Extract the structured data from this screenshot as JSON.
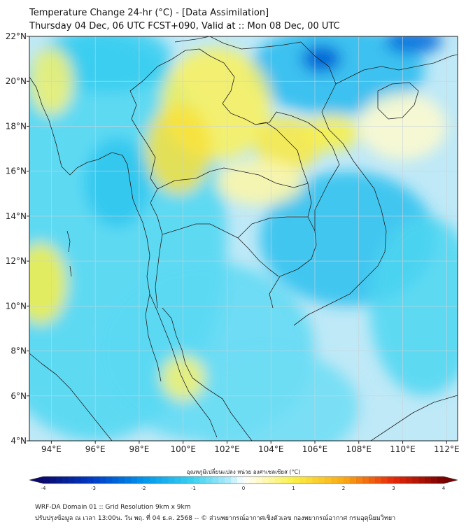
{
  "title": {
    "line1": "Temperature Change 24-hr (°C) - [Data Assimilation]",
    "line2": "Thursday 04 Dec, 06 UTC FCST+090, Valid at :: Mon 08 Dec, 00 UTC"
  },
  "map": {
    "lon_range": [
      93,
      112.5
    ],
    "lat_range": [
      4,
      22
    ],
    "lon_ticks": [
      {
        "value": 94,
        "label": "94°E"
      },
      {
        "value": 96,
        "label": "96°E"
      },
      {
        "value": 98,
        "label": "98°E"
      },
      {
        "value": 100,
        "label": "100°E"
      },
      {
        "value": 102,
        "label": "102°E"
      },
      {
        "value": 104,
        "label": "104°E"
      },
      {
        "value": 106,
        "label": "106°E"
      },
      {
        "value": 108,
        "label": "108°E"
      },
      {
        "value": 110,
        "label": "110°E"
      },
      {
        "value": 112,
        "label": "112°E"
      }
    ],
    "lat_ticks": [
      {
        "value": 4,
        "label": "4°N"
      },
      {
        "value": 6,
        "label": "6°N"
      },
      {
        "value": 8,
        "label": "8°N"
      },
      {
        "value": 10,
        "label": "10°N"
      },
      {
        "value": 12,
        "label": "12°N"
      },
      {
        "value": 14,
        "label": "14°N"
      },
      {
        "value": 16,
        "label": "16°N"
      },
      {
        "value": 18,
        "label": "18°N"
      },
      {
        "value": 20,
        "label": "20°N"
      },
      {
        "value": 22,
        "label": "22°N"
      }
    ],
    "anomaly_blobs": [
      {
        "lon": 96,
        "lat": 13,
        "rx": 6,
        "ry": 9,
        "v": -0.9
      },
      {
        "lon": 101,
        "lat": 8,
        "rx": 5,
        "ry": 4,
        "v": -0.8
      },
      {
        "lon": 107.5,
        "lat": 13,
        "rx": 4,
        "ry": 3,
        "v": -1.3
      },
      {
        "lon": 111,
        "lat": 10,
        "rx": 2.5,
        "ry": 4,
        "v": -0.9
      },
      {
        "lon": 104,
        "lat": 5.5,
        "rx": 4,
        "ry": 2.5,
        "v": -0.7
      },
      {
        "lon": 107,
        "lat": 20.5,
        "rx": 4,
        "ry": 2,
        "v": -1.4
      },
      {
        "lon": 106.3,
        "lat": 21,
        "rx": 0.9,
        "ry": 0.6,
        "v": -2.7
      },
      {
        "lon": 110.5,
        "lat": 21.8,
        "rx": 1.3,
        "ry": 0.6,
        "v": -2.5
      },
      {
        "lon": 96.5,
        "lat": 21,
        "rx": 3,
        "ry": 1.5,
        "v": -1.1
      },
      {
        "lon": 101.5,
        "lat": 19,
        "rx": 2.5,
        "ry": 2.5,
        "v": 0.9
      },
      {
        "lon": 99.8,
        "lat": 17,
        "rx": 1.5,
        "ry": 2,
        "v": 1.2
      },
      {
        "lon": 104.8,
        "lat": 17.2,
        "rx": 1.5,
        "ry": 1.2,
        "v": 1.1
      },
      {
        "lon": 106.8,
        "lat": 17.7,
        "rx": 1.2,
        "ry": 0.8,
        "v": 1.0
      },
      {
        "lon": 103.5,
        "lat": 15.5,
        "rx": 2,
        "ry": 1,
        "v": 0.5
      },
      {
        "lon": 93.5,
        "lat": 11,
        "rx": 1.2,
        "ry": 1.8,
        "v": 1.0
      },
      {
        "lon": 94,
        "lat": 20,
        "rx": 1,
        "ry": 1.5,
        "v": 0.8
      },
      {
        "lon": 100,
        "lat": 6.8,
        "rx": 1,
        "ry": 1,
        "v": 0.8
      },
      {
        "lon": 110,
        "lat": 18,
        "rx": 2,
        "ry": 1.5,
        "v": 0.3
      },
      {
        "lon": 97,
        "lat": 15.5,
        "rx": 1.5,
        "ry": 2,
        "v": -1.2
      }
    ]
  },
  "colorbar": {
    "title": "อุณหภูมิเปลี่ยนแปลง หน่วย องศาเซลเซียส (°C)",
    "min": -4,
    "max": 4,
    "ticks": [
      {
        "value": -4,
        "label": "-4"
      },
      {
        "value": -3,
        "label": "-3"
      },
      {
        "value": -2,
        "label": "-2"
      },
      {
        "value": -1,
        "label": "-1"
      },
      {
        "value": 0,
        "label": "0"
      },
      {
        "value": 1,
        "label": "1"
      },
      {
        "value": 2,
        "label": "2"
      },
      {
        "value": 3,
        "label": "3"
      },
      {
        "value": 4,
        "label": "4"
      }
    ]
  },
  "footer": {
    "line1": "WRF-DA Domain 01 :: Grid Resolution 9km x 9km",
    "line2": "ปรับปรุงข้อมูล ณ เวลา 13:00น. วัน พฤ. ที่ 04 ธ.ค. 2568 -- © ส่วนพยากรณ์อากาศเชิงตัวเลข กองพยากรณ์อากาศ กรมอุตุนิยมวิทยา"
  }
}
